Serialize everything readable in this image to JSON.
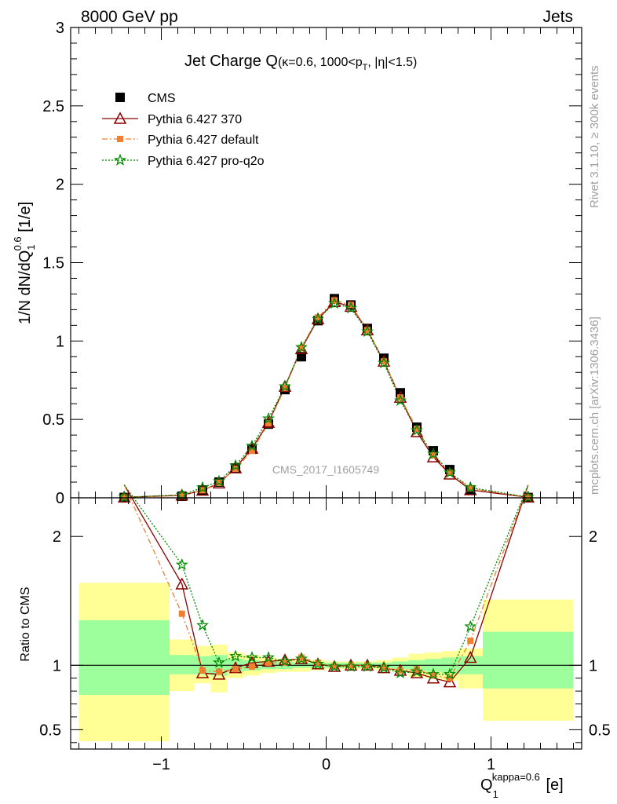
{
  "header": {
    "energy_label": "8000 GeV pp",
    "process_label": "Jets"
  },
  "side_labels": {
    "rivet": "Rivet 3.1.10, ≥ 300k events",
    "mcplots": "mcplots.cern.ch [arXiv:1306.3436]"
  },
  "watermark": "CMS_2017_I1605749",
  "colors": {
    "cms": "#000000",
    "p370": "#8b0000",
    "pdefault": "#f08030",
    "pq2o": "#008800",
    "band_green": "#9cff9c",
    "band_yellow": "#ffff96",
    "watermark": "#a0a0a0"
  },
  "chart_data": [
    {
      "type": "line",
      "panel": "main",
      "title": "Jet Charge Q",
      "title_main": "Jet Charge Q",
      "title_sub": "(κ=0.6, 1000<p",
      "title_sub_T": "T",
      "title_sub_end": ", |η|<1.5)",
      "ylabel": "1/N dN/dQ",
      "ylabel_sub": "1",
      "ylabel_sup": "0.6",
      "ylabel_unit": " [1/e]",
      "xlim": [
        -1.55,
        1.55
      ],
      "ylim": [
        0,
        3
      ],
      "yticks": [
        0,
        0.5,
        1,
        1.5,
        2,
        2.5,
        3
      ],
      "ytick_labels": [
        "0",
        "0.5",
        "1",
        "1.5",
        "2",
        "2.5",
        "3"
      ],
      "legend_position": "top-left",
      "legend": [
        "CMS",
        "Pythia 6.427 370",
        "Pythia 6.427 default",
        "Pythia 6.427 pro-q2o"
      ],
      "series": [
        {
          "name": "CMS",
          "marker": "square",
          "x": [
            -1.225,
            -0.875,
            -0.75,
            -0.65,
            -0.55,
            -0.45,
            -0.35,
            -0.25,
            -0.15,
            -0.05,
            0.05,
            0.15,
            0.25,
            0.35,
            0.45,
            0.55,
            0.65,
            0.75,
            0.875,
            1.225
          ],
          "y": [
            0.002,
            0.01,
            0.05,
            0.1,
            0.19,
            0.31,
            0.47,
            0.69,
            0.9,
            1.13,
            1.27,
            1.23,
            1.08,
            0.89,
            0.67,
            0.45,
            0.3,
            0.18,
            0.05,
            0.002
          ]
        },
        {
          "name": "Pythia 6.427 370",
          "marker": "triangle",
          "line": "solid",
          "x": [
            -1.225,
            -0.875,
            -0.75,
            -0.65,
            -0.55,
            -0.45,
            -0.35,
            -0.25,
            -0.15,
            -0.05,
            0.05,
            0.15,
            0.25,
            0.35,
            0.45,
            0.55,
            0.65,
            0.75,
            0.875,
            1.225
          ],
          "y": [
            0.003,
            0.016,
            0.047,
            0.093,
            0.19,
            0.315,
            0.48,
            0.71,
            0.95,
            1.14,
            1.25,
            1.22,
            1.07,
            0.87,
            0.64,
            0.42,
            0.26,
            0.15,
            0.05,
            0.003
          ]
        },
        {
          "name": "Pythia 6.427 default",
          "marker": "filled-square",
          "line": "dashdot",
          "x": [
            -1.225,
            -0.875,
            -0.75,
            -0.65,
            -0.55,
            -0.45,
            -0.35,
            -0.25,
            -0.15,
            -0.05,
            0.05,
            0.15,
            0.25,
            0.35,
            0.45,
            0.55,
            0.65,
            0.75,
            0.875,
            1.225
          ],
          "y": [
            0.003,
            0.014,
            0.048,
            0.095,
            0.185,
            0.3,
            0.475,
            0.7,
            0.955,
            1.15,
            1.26,
            1.23,
            1.07,
            0.87,
            0.64,
            0.44,
            0.27,
            0.16,
            0.06,
            0.003
          ]
        },
        {
          "name": "Pythia 6.427 pro-q2o",
          "marker": "star",
          "line": "dotted",
          "x": [
            -1.225,
            -0.875,
            -0.75,
            -0.65,
            -0.55,
            -0.45,
            -0.35,
            -0.25,
            -0.15,
            -0.05,
            0.05,
            0.15,
            0.25,
            0.35,
            0.45,
            0.55,
            0.65,
            0.75,
            0.875,
            1.225
          ],
          "y": [
            0.004,
            0.018,
            0.065,
            0.105,
            0.205,
            0.33,
            0.505,
            0.71,
            0.96,
            1.14,
            1.24,
            1.21,
            1.06,
            0.86,
            0.62,
            0.43,
            0.28,
            0.16,
            0.065,
            0.004
          ]
        }
      ]
    },
    {
      "type": "line",
      "panel": "ratio",
      "ylabel": "Ratio to CMS",
      "xlabel": "Q",
      "xlabel_sub": "1",
      "xlabel_sup": "kappa=0.6",
      "xlabel_unit": " [e]",
      "xlim": [
        -1.55,
        1.55
      ],
      "ylim": [
        0.35,
        2.3
      ],
      "xticks": [
        -1,
        0,
        1
      ],
      "xtick_labels": [
        "−1",
        "0",
        "1"
      ],
      "yticks": [
        0.5,
        1,
        2
      ],
      "ytick_labels": [
        "0.5",
        "1",
        "2"
      ],
      "reference_line": 1,
      "bins": [
        {
          "lo": -1.5,
          "hi": -0.95,
          "green": [
            0.77,
            1.35
          ],
          "yellow": [
            0.41,
            1.64
          ]
        },
        {
          "lo": -0.95,
          "hi": -0.8,
          "green": [
            0.93,
            1.08
          ],
          "yellow": [
            0.8,
            1.2
          ]
        },
        {
          "lo": -0.8,
          "hi": -0.7,
          "green": [
            0.93,
            1.07
          ],
          "yellow": [
            0.86,
            1.15
          ]
        },
        {
          "lo": -0.7,
          "hi": -0.6,
          "green": [
            0.92,
            1.08
          ],
          "yellow": [
            0.79,
            1.16
          ]
        },
        {
          "lo": -0.6,
          "hi": -0.5,
          "green": [
            0.95,
            1.05
          ],
          "yellow": [
            0.9,
            1.1
          ]
        },
        {
          "lo": -0.5,
          "hi": -0.4,
          "green": [
            0.96,
            1.04
          ],
          "yellow": [
            0.92,
            1.08
          ]
        },
        {
          "lo": -0.4,
          "hi": -0.3,
          "green": [
            0.97,
            1.03
          ],
          "yellow": [
            0.94,
            1.06
          ]
        },
        {
          "lo": -0.3,
          "hi": -0.2,
          "green": [
            0.97,
            1.03
          ],
          "yellow": [
            0.95,
            1.05
          ]
        },
        {
          "lo": -0.2,
          "hi": -0.1,
          "green": [
            0.98,
            1.02
          ],
          "yellow": [
            0.95,
            1.05
          ]
        },
        {
          "lo": -0.1,
          "hi": 0.0,
          "green": [
            0.98,
            1.02
          ],
          "yellow": [
            0.96,
            1.04
          ]
        },
        {
          "lo": 0.0,
          "hi": 0.1,
          "green": [
            0.98,
            1.02
          ],
          "yellow": [
            0.97,
            1.03
          ]
        },
        {
          "lo": 0.1,
          "hi": 0.2,
          "green": [
            0.98,
            1.02
          ],
          "yellow": [
            0.97,
            1.03
          ]
        },
        {
          "lo": 0.2,
          "hi": 0.3,
          "green": [
            0.98,
            1.02
          ],
          "yellow": [
            0.97,
            1.03
          ]
        },
        {
          "lo": 0.3,
          "hi": 0.4,
          "green": [
            0.98,
            1.02
          ],
          "yellow": [
            0.96,
            1.04
          ]
        },
        {
          "lo": 0.4,
          "hi": 0.5,
          "green": [
            0.97,
            1.03
          ],
          "yellow": [
            0.95,
            1.06
          ]
        },
        {
          "lo": 0.5,
          "hi": 0.6,
          "green": [
            0.96,
            1.04
          ],
          "yellow": [
            0.91,
            1.09
          ]
        },
        {
          "lo": 0.6,
          "hi": 0.7,
          "green": [
            0.95,
            1.05
          ],
          "yellow": [
            0.9,
            1.1
          ]
        },
        {
          "lo": 0.7,
          "hi": 0.8,
          "green": [
            0.94,
            1.06
          ],
          "yellow": [
            0.88,
            1.11
          ]
        },
        {
          "lo": 0.8,
          "hi": 0.95,
          "green": [
            0.93,
            1.07
          ],
          "yellow": [
            0.82,
            1.13
          ]
        },
        {
          "lo": 0.95,
          "hi": 1.5,
          "green": [
            0.82,
            1.26
          ],
          "yellow": [
            0.57,
            1.51
          ]
        }
      ],
      "series": [
        {
          "name": "Pythia 6.427 370",
          "x": [
            -1.225,
            -0.875,
            -0.75,
            -0.65,
            -0.55,
            -0.45,
            -0.35,
            -0.25,
            -0.15,
            -0.05,
            0.05,
            0.15,
            0.25,
            0.35,
            0.45,
            0.55,
            0.65,
            0.75,
            0.875,
            1.225
          ],
          "y": [
            2.4,
            1.63,
            0.94,
            0.93,
            0.98,
            1.02,
            1.03,
            1.04,
            1.05,
            1.01,
            0.99,
            1.0,
            1.0,
            0.98,
            0.96,
            0.94,
            0.9,
            0.87,
            1.06,
            2.4
          ]
        },
        {
          "name": "Pythia 6.427 default",
          "x": [
            -1.225,
            -0.875,
            -0.75,
            -0.65,
            -0.55,
            -0.45,
            -0.35,
            -0.25,
            -0.15,
            -0.05,
            0.05,
            0.15,
            0.25,
            0.35,
            0.45,
            0.55,
            0.65,
            0.75,
            0.875,
            1.225
          ],
          "y": [
            2.4,
            1.4,
            0.96,
            0.95,
            0.97,
            0.99,
            1.02,
            1.02,
            1.06,
            1.02,
            0.99,
            1.0,
            1.0,
            0.98,
            0.96,
            0.97,
            0.92,
            0.9,
            1.19,
            2.4
          ]
        },
        {
          "name": "Pythia 6.427 pro-q2o",
          "x": [
            -1.225,
            -0.875,
            -0.75,
            -0.65,
            -0.55,
            -0.45,
            -0.35,
            -0.25,
            -0.15,
            -0.05,
            0.05,
            0.15,
            0.25,
            0.35,
            0.45,
            0.55,
            0.65,
            0.75,
            0.875,
            1.225
          ],
          "y": [
            2.4,
            1.78,
            1.31,
            1.02,
            1.07,
            1.06,
            1.06,
            1.03,
            1.05,
            1.01,
            0.99,
            0.99,
            0.99,
            0.98,
            0.94,
            0.95,
            0.93,
            0.93,
            1.3,
            2.4
          ]
        }
      ]
    }
  ]
}
